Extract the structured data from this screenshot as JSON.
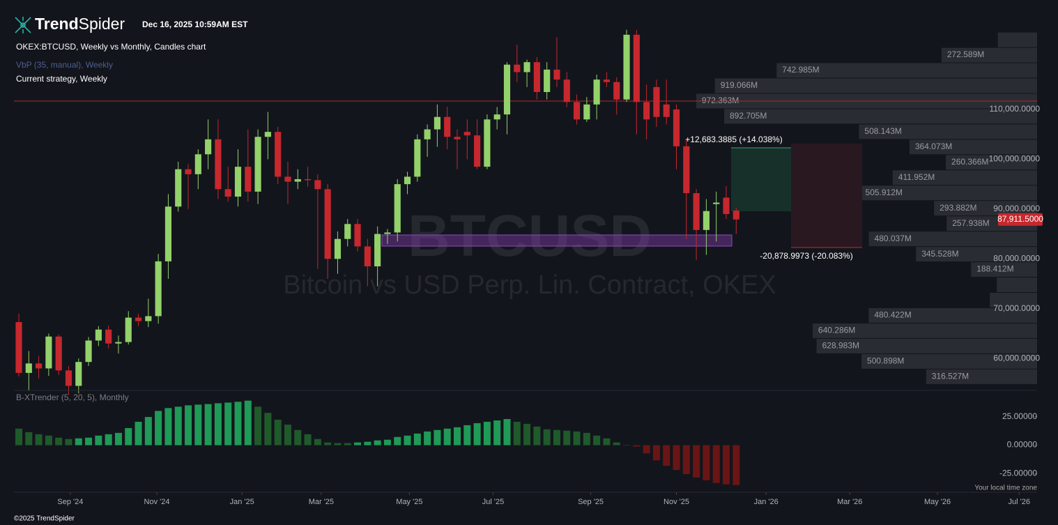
{
  "header": {
    "logo_bold": "Trend",
    "logo_light": "Spider",
    "timestamp": "Dec 16, 2025 10:59AM EST",
    "chart_title": "OKEX:BTCUSD, Weekly vs Monthly, Candles chart",
    "overlay_1": "VbP (35, manual), Weekly",
    "overlay_2": "Current strategy, Weekly",
    "watermark_symbol": "BTCUSD",
    "watermark_name": "Bitcoin vs USD Perp. Lin. Contract, OKEX",
    "timezone_note": "Your local time zone",
    "copyright": "©2025 TrendSpider"
  },
  "annotations": {
    "long_target": "+12,683.3885 (+14.038%)",
    "short_target": "-20,878.9973 (-20.083%)"
  },
  "chart_data": [
    {
      "type": "candlestick",
      "up_color": "#93d16a",
      "down_color": "#c6282e",
      "open": [
        67300,
        57100,
        59000,
        58000,
        64400,
        57600,
        54500,
        59300,
        63600,
        65800,
        63000,
        63300,
        68200,
        67500,
        68500,
        79500,
        90500,
        98000,
        97000,
        101000,
        104000,
        94000,
        92500,
        98500,
        93500,
        104500,
        105500,
        96500,
        95500,
        96000,
        95800,
        94000,
        80000,
        84000,
        87000,
        82500,
        78500,
        85000,
        85300,
        95000,
        96500,
        104000,
        106000,
        108500,
        104500,
        105500,
        104800,
        98500,
        108000,
        109000,
        119000,
        117500,
        119500,
        113500,
        118000,
        116000,
        111500,
        108000,
        111000,
        116000,
        115500,
        112000,
        125000,
        111500,
        114500,
        111000,
        110000,
        102600,
        93200,
        85800,
        91000,
        92300,
        89700
      ],
      "high": [
        69000,
        61500,
        60500,
        65000,
        64800,
        58500,
        60000,
        64300,
        66500,
        66600,
        64600,
        69500,
        69000,
        72000,
        81000,
        93000,
        99500,
        99000,
        102000,
        108000,
        108000,
        98500,
        102000,
        106000,
        106000,
        109500,
        106500,
        99500,
        98000,
        98500,
        97000,
        95000,
        85500,
        88000,
        88000,
        84000,
        86500,
        86000,
        96000,
        97500,
        105000,
        107000,
        111000,
        110500,
        106000,
        108000,
        108000,
        109000,
        110500,
        119500,
        123000,
        120000,
        120500,
        119500,
        124500,
        117500,
        113000,
        112500,
        117000,
        117500,
        116500,
        126000,
        126000,
        115000,
        116000,
        116000,
        111000,
        104000,
        94000,
        92000,
        93500,
        94600,
        90200
      ],
      "low": [
        56400,
        53500,
        56000,
        56500,
        56700,
        52700,
        53000,
        58500,
        62500,
        62000,
        61000,
        62800,
        66500,
        66300,
        67000,
        76000,
        89500,
        90000,
        94000,
        98000,
        92000,
        91500,
        90500,
        91500,
        91000,
        100000,
        95000,
        91000,
        94000,
        94500,
        78000,
        76000,
        77000,
        82500,
        81500,
        74500,
        74500,
        83000,
        83500,
        93000,
        95500,
        100500,
        102500,
        102000,
        98000,
        100000,
        98000,
        98000,
        106000,
        105000,
        115500,
        114500,
        112000,
        112000,
        114500,
        110500,
        107000,
        107500,
        108000,
        114500,
        109000,
        111500,
        105000,
        104000,
        106500,
        107000,
        98000,
        84000,
        79800,
        80800,
        83500,
        88000,
        85000
      ],
      "close": [
        57100,
        59000,
        58000,
        64400,
        57600,
        54500,
        59300,
        63600,
        65800,
        63000,
        63300,
        68200,
        67500,
        68500,
        79500,
        90500,
        98000,
        97000,
        101000,
        104000,
        94000,
        92500,
        98500,
        93500,
        104500,
        105500,
        96500,
        95500,
        96000,
        95800,
        94000,
        80000,
        84000,
        87000,
        82500,
        78500,
        85000,
        85300,
        95000,
        96500,
        104000,
        106000,
        108500,
        104500,
        104000,
        104800,
        98500,
        108000,
        109000,
        119000,
        117500,
        119500,
        113500,
        118000,
        116000,
        111500,
        108000,
        111000,
        116000,
        115500,
        112000,
        125000,
        111500,
        108000,
        108500,
        108500,
        102600,
        93200,
        85800,
        89600,
        91300,
        89000,
        87911.5
      ],
      "last_price": {
        "value": 87911.5,
        "label": "87,911.5000"
      },
      "last_price_color": "#c6282e",
      "xlim": [
        -0.49,
        102.2
      ],
      "xticks": [
        {
          "value": 5.17,
          "label": "Sep '24"
        },
        {
          "value": 13.85,
          "label": "Nov '24"
        },
        {
          "value": 22.4,
          "label": "Jan '25"
        },
        {
          "value": 30.35,
          "label": "Mar '25"
        },
        {
          "value": 39.2,
          "label": "May '25"
        },
        {
          "value": 47.6,
          "label": "Jul '25"
        },
        {
          "value": 57.4,
          "label": "Sep '25"
        },
        {
          "value": 66.0,
          "label": "Nov '25"
        },
        {
          "value": 75.0,
          "label": "Jan '26"
        },
        {
          "value": 83.4,
          "label": "Mar '26"
        },
        {
          "value": 92.2,
          "label": "May '26"
        },
        {
          "value": 100.4,
          "label": "Jul '26"
        }
      ],
      "ylim": [
        53860,
        125540
      ],
      "yticks": [
        {
          "value": 110000,
          "label": "110,000.0000"
        },
        {
          "value": 100000,
          "label": "100,000.0000"
        },
        {
          "value": 90000,
          "label": "90,000.0000"
        },
        {
          "value": 80000,
          "label": "80,000.0000"
        },
        {
          "value": 70000,
          "label": "70,000.0000"
        },
        {
          "value": 60000,
          "label": "60,000.0000"
        }
      ],
      "volume_profile": {
        "color": "#2a2c33",
        "bins": [
          54800,
          57875,
          60950,
          64025,
          67100,
          70175,
          73250,
          76325,
          79400,
          82475,
          85550,
          88625,
          91700,
          94775,
          97850,
          100925,
          104000,
          107075,
          110150,
          113225,
          116300,
          119375,
          122450,
          125525
        ],
        "values": [
          316.527,
          500.898,
          628.983,
          640.286,
          480.422,
          135,
          115,
          188.412,
          345.528,
          480.037,
          257.938,
          293.882,
          505.912,
          411.952,
          260.366,
          364.073,
          508.143,
          892.705,
          972.363,
          919.066,
          742.985,
          272.589,
          112
        ],
        "value_labels": [
          "316.527M",
          "500.898M",
          "628.983M",
          "640.286M",
          "480.422M",
          null,
          null,
          "188.412M",
          "345.528M",
          "480.037M",
          "257.938M",
          "293.882M",
          "505.912M",
          "411.952M",
          "260.366M",
          "364.073M",
          "508.143M",
          "892.705M",
          "972.363M",
          "919.066M",
          "742.985M",
          "272.589M",
          null
        ]
      }
    },
    {
      "type": "bar",
      "title": "B-XTrender (5, 20, 5), Monthly",
      "values": [
        14.5,
        11.4,
        9.6,
        8.4,
        6.6,
        5.4,
        6,
        6.6,
        8.4,
        9.6,
        10.8,
        15,
        20.5,
        24.7,
        30,
        32.5,
        33.7,
        34.9,
        35.5,
        36,
        36.7,
        37.3,
        38,
        39,
        33.7,
        28.3,
        22.3,
        18,
        13.3,
        9.6,
        5.4,
        2.4,
        1.8,
        1.8,
        2.4,
        3,
        4.2,
        4.8,
        7.2,
        8.4,
        10.2,
        12,
        13.3,
        14.5,
        15.7,
        17.5,
        19.3,
        20.5,
        21.7,
        22.9,
        20.5,
        18.7,
        16.3,
        13.9,
        13.3,
        12.7,
        12,
        10.8,
        8.4,
        6,
        2.4,
        0.3,
        -1.2,
        -7.2,
        -13.3,
        -18,
        -21.7,
        -25.3,
        -28.3,
        -30.7,
        -33.1,
        -34.3,
        -34.9
      ],
      "colors": {
        "positive_rising": "#1f9a57",
        "positive_falling": "#1f5a2b",
        "negative_falling": "#6a1515",
        "negative_rising": "#a82222"
      },
      "ylim": [
        -37.5,
        40
      ],
      "yticks": [
        {
          "value": 25,
          "label": "25.00000"
        },
        {
          "value": 0,
          "label": "0.00000"
        },
        {
          "value": -25,
          "label": "-25.00000"
        }
      ]
    }
  ]
}
